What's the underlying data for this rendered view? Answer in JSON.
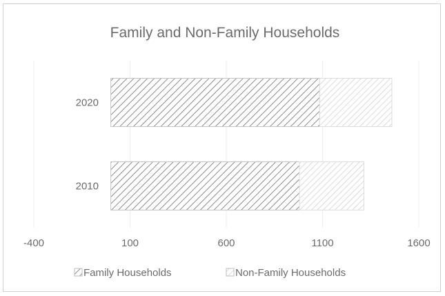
{
  "chart_data": {
    "type": "bar",
    "orientation": "horizontal",
    "stacked": true,
    "title": "Family and Non-Family Households",
    "categories": [
      "2020",
      "2010"
    ],
    "series": [
      {
        "name": "Family Households",
        "values": [
          1085,
          980
        ],
        "color": "#8c8c8c",
        "pattern": "hatch-dense"
      },
      {
        "name": "Non-Family Households",
        "values": [
          375,
          335
        ],
        "color": "#c8c8c8",
        "pattern": "hatch-light"
      }
    ],
    "x_ticks": [
      "-400",
      "100",
      "600",
      "1100",
      "1600"
    ],
    "xlim": [
      -400,
      1600
    ],
    "grid": true,
    "legend": "bottom",
    "xlabel": "",
    "ylabel": ""
  }
}
